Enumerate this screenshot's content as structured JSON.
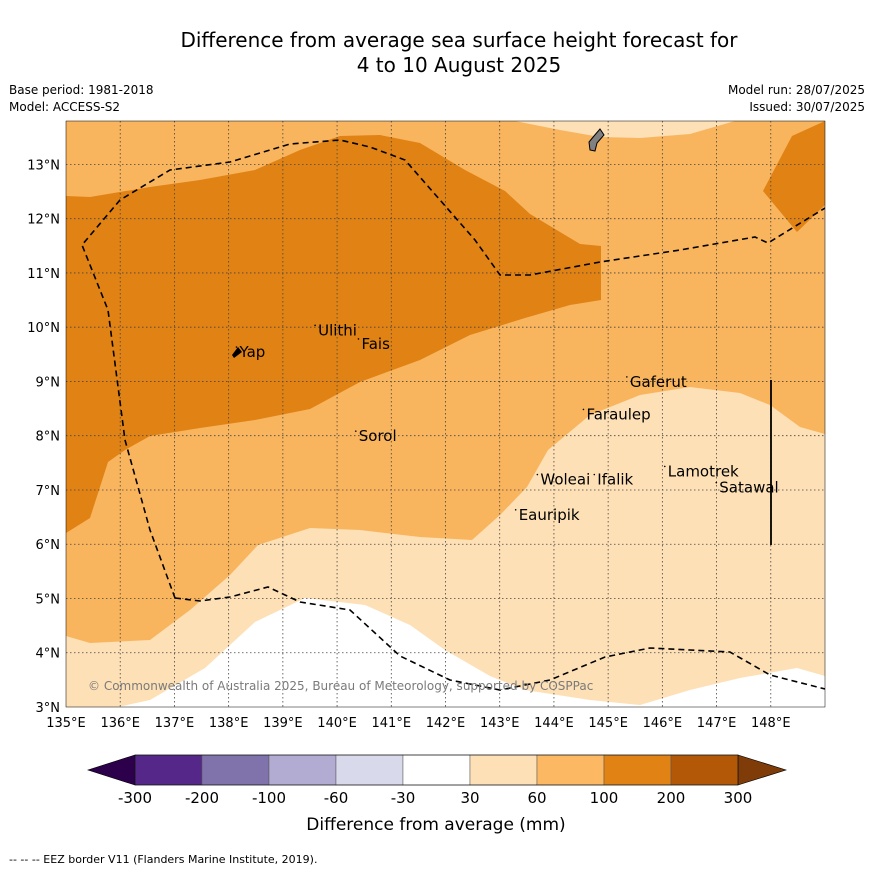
{
  "header": {
    "title_line1": "Difference from average sea surface height forecast for",
    "title_line2": "4 to 10 August 2025",
    "base_period": "Base period: 1981-2018",
    "model": "Model: ACCESS-S2",
    "model_run": "Model run: 28/07/2025",
    "issued": "Issued: 30/07/2025"
  },
  "map": {
    "lon_labels": [
      "135°E",
      "136°E",
      "137°E",
      "138°E",
      "139°E",
      "140°E",
      "141°E",
      "142°E",
      "143°E",
      "144°E",
      "145°E",
      "146°E",
      "147°E",
      "148°E"
    ],
    "lat_labels": [
      "3°N",
      "4°N",
      "5°N",
      "6°N",
      "7°N",
      "8°N",
      "9°N",
      "10°N",
      "11°N",
      "12°N",
      "13°N"
    ],
    "places": [
      {
        "name": "Yap",
        "lon": 138.2,
        "lat": 9.45
      },
      {
        "name": "Ulithi",
        "lon": 139.65,
        "lat": 9.85
      },
      {
        "name": "Fais",
        "lon": 140.45,
        "lat": 9.6
      },
      {
        "name": "Gaferut",
        "lon": 145.4,
        "lat": 8.9
      },
      {
        "name": "Faraulep",
        "lon": 144.6,
        "lat": 8.3
      },
      {
        "name": "Sorol",
        "lon": 140.4,
        "lat": 7.9
      },
      {
        "name": "Woleai",
        "lon": 143.75,
        "lat": 7.1
      },
      {
        "name": "Ifalik",
        "lon": 144.8,
        "lat": 7.1
      },
      {
        "name": "Lamotrek",
        "lon": 146.1,
        "lat": 7.25
      },
      {
        "name": "Satawal",
        "lon": 147.05,
        "lat": 6.95
      },
      {
        "name": "Eauripik",
        "lon": 143.35,
        "lat": 6.45
      }
    ],
    "copyright": "© Commonwealth of Australia 2025, Bureau of Meteorology, supported by COSPPac",
    "colors": {
      "30_to_60": "#fde0b6",
      "60_to_100": "#f9b45e",
      "100_to_200": "#e08214",
      "200_to_300": "#b35806",
      "land": "#808080",
      "white": "#ffffff"
    }
  },
  "colorbar": {
    "labels": [
      "-300",
      "-200",
      "-100",
      "-60",
      "-30",
      "30",
      "60",
      "100",
      "200",
      "300"
    ],
    "colors": [
      "#542788",
      "#8073ac",
      "#b2abd2",
      "#d8daeb",
      "#ffffff",
      "#fee0b6",
      "#fdb863",
      "#e08214",
      "#b35806"
    ],
    "under_color": "#2d004b",
    "over_color": "#7f3b08",
    "title": "Difference from average (mm)"
  },
  "footer": {
    "legend": "--  --  -- EEZ border V11 (Flanders Marine Institute, 2019)."
  }
}
